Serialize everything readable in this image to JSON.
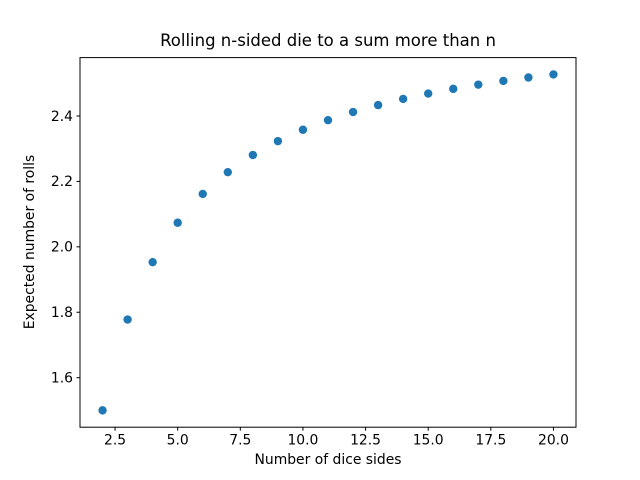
{
  "chart_data": {
    "type": "scatter",
    "title": "Rolling n-sided die to a sum more than n",
    "xlabel": "Number of dice sides",
    "ylabel": "Expected number of rolls",
    "x": [
      2,
      3,
      4,
      5,
      6,
      7,
      8,
      9,
      10,
      11,
      12,
      13,
      14,
      15,
      16,
      17,
      18,
      19,
      20
    ],
    "y": [
      1.5,
      1.7778,
      1.9531,
      2.0736,
      2.1617,
      2.2282,
      2.2807,
      2.3231,
      2.3579,
      2.3872,
      2.4121,
      2.4333,
      2.4521,
      2.4685,
      2.4829,
      2.4958,
      2.5073,
      2.5177,
      2.5271
    ],
    "xlim": [
      1.1,
      20.9
    ],
    "ylim": [
      1.4486,
      2.5785
    ],
    "xticks": [
      2.5,
      5.0,
      7.5,
      10.0,
      12.5,
      15.0,
      17.5,
      20.0
    ],
    "xtick_labels": [
      "2.5",
      "5.0",
      "7.5",
      "10.0",
      "12.5",
      "15.0",
      "17.5",
      "20.0"
    ],
    "yticks": [
      1.6,
      1.8,
      2.0,
      2.2,
      2.4
    ],
    "ytick_labels": [
      "1.6",
      "1.8",
      "2.0",
      "2.2",
      "2.4"
    ],
    "marker_color": "#1f77b4",
    "axis_color": "#000000",
    "background_color": "#ffffff",
    "grid": false,
    "legend": "none",
    "marker_style": "circle"
  }
}
